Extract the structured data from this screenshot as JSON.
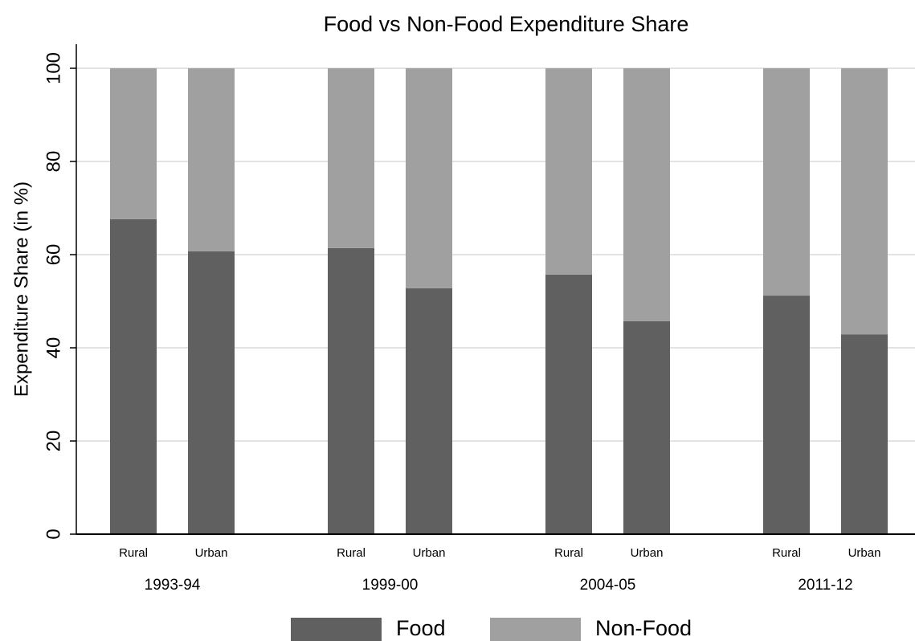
{
  "chart_data": {
    "type": "stacked_bar",
    "title": "Food vs Non-Food Expenditure Share",
    "ylabel": "Expenditure Share (in %)",
    "groups": [
      "1993-94",
      "1999-00",
      "2004-05",
      "2011-12"
    ],
    "categories": [
      "Rural",
      "Urban",
      "Rural",
      "Urban",
      "Rural",
      "Urban",
      "Rural",
      "Urban"
    ],
    "series": [
      {
        "name": "Food",
        "color": "#606060",
        "values": [
          67.6,
          60.7,
          61.4,
          52.8,
          55.7,
          45.7,
          51.2,
          42.9
        ]
      },
      {
        "name": "Non-Food",
        "color": "#a0a0a0",
        "values": [
          32.4,
          39.3,
          38.6,
          47.2,
          44.3,
          54.3,
          48.8,
          57.1
        ]
      }
    ],
    "ylim": [
      0,
      100
    ],
    "yticks": [
      0,
      20,
      40,
      60,
      80,
      100
    ],
    "grid": true,
    "legend": "bottom"
  }
}
